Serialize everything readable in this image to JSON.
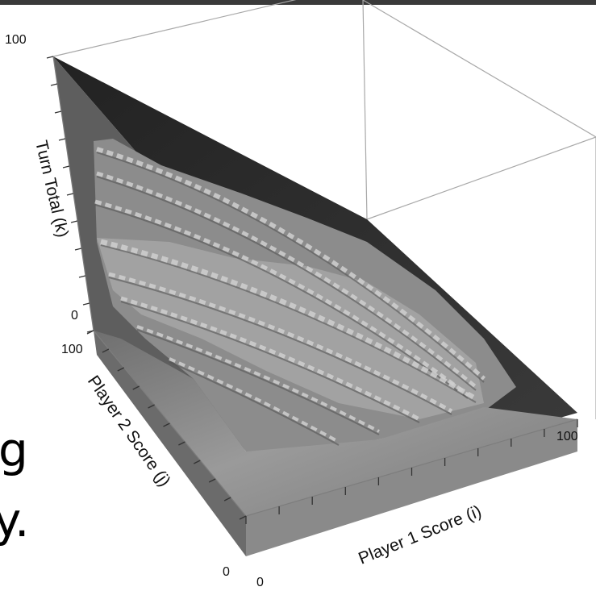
{
  "chart_data": {
    "type": "surface3d",
    "title": "",
    "xlabel": "Player 1 Score (i)",
    "ylabel": "Player 2 Score (j)",
    "zlabel": "Turn Total (k)",
    "xlim": [
      0,
      100
    ],
    "ylim": [
      0,
      100
    ],
    "zlim": [
      0,
      100
    ],
    "x_ticks": [
      "0",
      "100"
    ],
    "y_ticks": [
      "0",
      "100"
    ],
    "z_ticks": [
      "0",
      "100"
    ],
    "grid": false,
    "colors": {
      "surface": "#8c8c8c",
      "surface_highlight": "#cfcfcf",
      "wall": "#6e6e6e",
      "top_face": "#2a2a2a",
      "box_lines": "#a0a0a0"
    }
  },
  "slide_text": {
    "line1": "g",
    "line2": "y."
  }
}
